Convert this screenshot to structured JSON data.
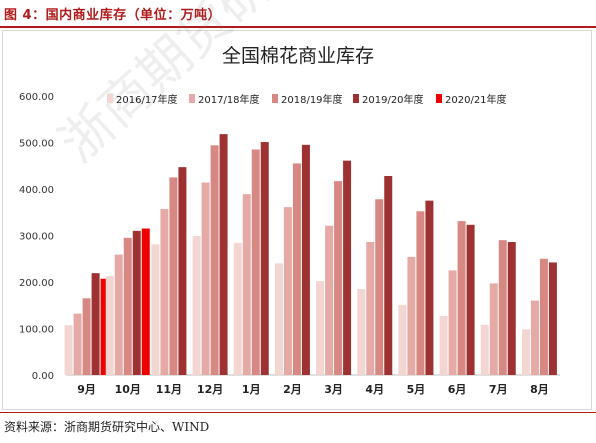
{
  "figure_title": "图 4：国内商业库存（单位：万吨）",
  "source": "资料来源：浙商期货研究中心、WIND",
  "watermark": "浙商期货研究中心",
  "chart_data": {
    "type": "bar",
    "title": "全国棉花商业库存",
    "xlabel": "",
    "ylabel": "",
    "ylim": [
      0,
      600
    ],
    "yticks": [
      "0.00",
      "100.00",
      "200.00",
      "300.00",
      "400.00",
      "500.00",
      "600.00"
    ],
    "grid": false,
    "legend_position": "top",
    "categories": [
      "9月",
      "10月",
      "11月",
      "12月",
      "1月",
      "2月",
      "3月",
      "4月",
      "5月",
      "6月",
      "7月",
      "8月"
    ],
    "series": [
      {
        "name": "2016/17年度",
        "color": "#f3d5d2",
        "values": [
          107,
          213,
          281,
          299,
          284,
          240,
          202,
          185,
          151,
          127,
          108,
          98
        ]
      },
      {
        "name": "2017/18年度",
        "color": "#e5aaa5",
        "values": [
          132,
          259,
          357,
          414,
          389,
          361,
          321,
          286,
          254,
          225,
          197,
          160
        ]
      },
      {
        "name": "2018/19年度",
        "color": "#d88882",
        "values": [
          165,
          295,
          425,
          494,
          485,
          455,
          417,
          378,
          352,
          331,
          290,
          250
        ]
      },
      {
        "name": "2019/20年度",
        "color": "#9e3232",
        "values": [
          219,
          310,
          447,
          518,
          501,
          495,
          461,
          428,
          375,
          323,
          286,
          242
        ]
      },
      {
        "name": "2020/21年度",
        "color": "#ee0000",
        "values": [
          207,
          315,
          null,
          null,
          null,
          null,
          null,
          null,
          null,
          null,
          null,
          null
        ]
      }
    ]
  }
}
